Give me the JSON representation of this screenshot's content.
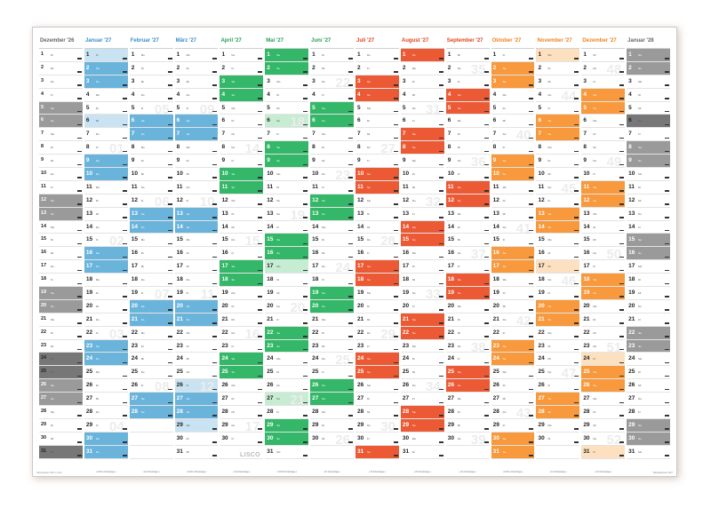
{
  "credit_left": "Jahresplaner 2027 | Lisco",
  "credit_right": "Wandkalender 2027",
  "logo": "LISCO",
  "day_abbr": [
    "Mo",
    "Di",
    "Mi",
    "Do",
    "Fr",
    "Sa",
    "So"
  ],
  "months": [
    {
      "title": "Dezember '26",
      "year": 2026,
      "month": 12,
      "days": 31,
      "weekend_color": "#9a9a9a",
      "ph_color": "#777777",
      "head_color": "#666666",
      "footer": ""
    },
    {
      "title": "Januar '27",
      "year": 2027,
      "month": 1,
      "days": 31,
      "weekend_color": "#6ab4dc",
      "ph_color": "#c9e3f2",
      "head_color": "#3a8ec9",
      "footer": "( 20/21 Arbeitstage )"
    },
    {
      "title": "Februar '27",
      "year": 2027,
      "month": 2,
      "days": 28,
      "weekend_color": "#6ab4dc",
      "ph_color": "#c9e3f2",
      "head_color": "#3a8ec9",
      "footer": "( 20 Arbeitstage )"
    },
    {
      "title": "März '27",
      "year": 2027,
      "month": 3,
      "days": 31,
      "weekend_color": "#6ab4dc",
      "ph_color": "#c9e3f2",
      "head_color": "#3a8ec9",
      "footer": "( 22/21 Arbeitstage )"
    },
    {
      "title": "April '27",
      "year": 2027,
      "month": 4,
      "days": 30,
      "weekend_color": "#34b768",
      "ph_color": "#c6ecd2",
      "head_color": "#27a056",
      "footer": "( 20 Arbeitstage )"
    },
    {
      "title": "Mai '27",
      "year": 2027,
      "month": 5,
      "days": 31,
      "weekend_color": "#34b768",
      "ph_color": "#c6ecd2",
      "head_color": "#27a056",
      "footer": "( 18/19 Arbeitstage )"
    },
    {
      "title": "Juni '27",
      "year": 2027,
      "month": 6,
      "days": 30,
      "weekend_color": "#34b768",
      "ph_color": "#c6ecd2",
      "head_color": "#27a056",
      "footer": "( 21 Arbeitstage )"
    },
    {
      "title": "Juli '27",
      "year": 2027,
      "month": 7,
      "days": 31,
      "weekend_color": "#ec5a35",
      "ph_color": "#fbd9c4",
      "head_color": "#e1441e",
      "footer": "( 22 Arbeitstage )"
    },
    {
      "title": "August '27",
      "year": 2027,
      "month": 8,
      "days": 31,
      "weekend_color": "#ec5a35",
      "ph_color": "#fbd9c4",
      "head_color": "#e1441e",
      "footer": "( 22 Arbeitstage )"
    },
    {
      "title": "September '27",
      "year": 2027,
      "month": 9,
      "days": 30,
      "weekend_color": "#ec5a35",
      "ph_color": "#fbd9c4",
      "head_color": "#e1441e",
      "footer": "( 22 Arbeitstage )"
    },
    {
      "title": "Oktober '27",
      "year": 2027,
      "month": 10,
      "days": 31,
      "weekend_color": "#f7993c",
      "ph_color": "#fde0bf",
      "head_color": "#ef8420",
      "footer": "( 20/21 Arbeitstage )"
    },
    {
      "title": "November '27",
      "year": 2027,
      "month": 11,
      "days": 30,
      "weekend_color": "#f7993c",
      "ph_color": "#fde0bf",
      "head_color": "#ef8420",
      "footer": "( 22 Arbeitstage )"
    },
    {
      "title": "Dezember '27",
      "year": 2027,
      "month": 12,
      "days": 31,
      "weekend_color": "#f7993c",
      "ph_color": "#fde0bf",
      "head_color": "#ef8420",
      "footer": "( 22 Arbeitstage )"
    },
    {
      "title": "Januar '28",
      "year": 2028,
      "month": 1,
      "days": 31,
      "weekend_color": "#9a9a9a",
      "ph_color": "#777777",
      "head_color": "#666666",
      "footer": ""
    }
  ],
  "shaded": {
    "2027-1": [
      1,
      6
    ],
    "2027-3": [
      26,
      29
    ],
    "2027-5": [
      1,
      6,
      17,
      27
    ],
    "2027-10": [
      3,
      31
    ],
    "2027-11": [
      1,
      17
    ],
    "2027-12": [
      24,
      25,
      26,
      31
    ],
    "2026-12": [
      24,
      25,
      26,
      31
    ],
    "2028-1": [
      1,
      6
    ]
  },
  "week_numbers": {
    "2027-1": {
      "8": "01",
      "15": "02",
      "22": "03",
      "29": "04"
    },
    "2027-2": {
      "5": "05",
      "12": "06",
      "19": "07",
      "26": "08"
    },
    "2027-3": {
      "5": "09",
      "12": "10",
      "19": "11",
      "26": "12"
    },
    "2027-4": {
      "8": "14",
      "15": "15",
      "22": "16",
      "29": "17"
    },
    "2027-5": {
      "6": "18",
      "13": "19",
      "20": "20",
      "27": "21"
    },
    "2027-6": {
      "3": "22",
      "10": "23",
      "17": "24",
      "24": "25",
      "30": "26"
    },
    "2027-7": {
      "8": "27",
      "15": "28",
      "22": "29",
      "29": "30"
    },
    "2027-8": {
      "5": "31",
      "12": "32",
      "19": "33",
      "26": "34"
    },
    "2027-9": {
      "2": "35",
      "9": "36",
      "16": "37",
      "23": "38",
      "30": "39"
    },
    "2027-10": {
      "7": "40",
      "14": "41",
      "21": "42",
      "28": "43"
    },
    "2027-11": {
      "4": "44",
      "11": "45",
      "18": "46",
      "25": "47"
    },
    "2027-12": {
      "2": "48",
      "9": "49",
      "16": "50",
      "23": "51",
      "30": "52"
    }
  }
}
